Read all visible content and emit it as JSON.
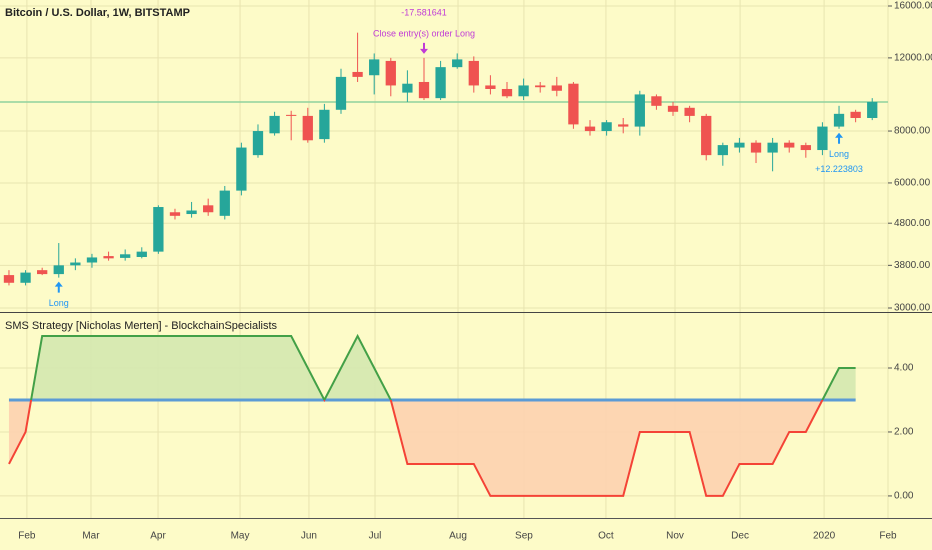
{
  "chart_data": [
    {
      "type": "candlestick",
      "title": "Bitcoin / U.S. Dollar, 1W, BITSTAMP",
      "x": [
        0,
        1,
        2,
        3,
        4,
        5,
        6,
        7,
        8,
        9,
        10,
        11,
        12,
        13,
        14,
        15,
        16,
        17,
        18,
        19,
        20,
        21,
        22,
        23,
        24,
        25,
        26,
        27,
        28,
        29,
        30,
        31,
        32,
        33,
        34,
        35,
        36,
        37,
        38,
        39,
        40,
        41,
        42,
        43,
        44,
        45,
        46,
        47,
        48,
        49,
        50,
        51,
        52
      ],
      "open": [
        3600,
        3450,
        3700,
        3620,
        3800,
        3860,
        4000,
        3960,
        3980,
        4100,
        5100,
        5050,
        5300,
        5000,
        5750,
        7000,
        7900,
        8750,
        8700,
        7650,
        9000,
        11100,
        10900,
        11800,
        9900,
        10500,
        9600,
        11400,
        11800,
        10300,
        10100,
        9700,
        10300,
        10300,
        10400,
        8200,
        8000,
        8300,
        8200,
        9700,
        9200,
        9100,
        8700,
        7000,
        7300,
        7500,
        7100,
        7500,
        7400,
        7200,
        8200,
        8900,
        8600
      ],
      "high": [
        3700,
        3700,
        3750,
        4300,
        3950,
        4050,
        4100,
        4150,
        4200,
        5300,
        5200,
        5400,
        5500,
        5900,
        7500,
        8300,
        8900,
        8950,
        9100,
        9300,
        11300,
        13800,
        12300,
        12000,
        11200,
        12000,
        11800,
        12300,
        12100,
        10900,
        10500,
        10700,
        10500,
        10800,
        10500,
        8500,
        8500,
        8600,
        10000,
        9800,
        9400,
        9200,
        8800,
        7500,
        7700,
        7600,
        7700,
        7600,
        7500,
        8400,
        9200,
        9000,
        9600
      ],
      "low": [
        3400,
        3400,
        3600,
        3550,
        3700,
        3750,
        3900,
        3900,
        3950,
        4050,
        4900,
        4950,
        5000,
        4900,
        5600,
        6900,
        7800,
        7600,
        7500,
        7500,
        8800,
        10500,
        9800,
        9700,
        9400,
        9500,
        9500,
        11300,
        9900,
        9800,
        9600,
        9500,
        9900,
        9700,
        8100,
        7800,
        7800,
        7900,
        7800,
        9000,
        8700,
        8400,
        6800,
        6600,
        7100,
        6700,
        6400,
        7100,
        6900,
        7000,
        8100,
        8400,
        8500
      ],
      "close": [
        3450,
        3650,
        3620,
        3800,
        3860,
        3970,
        3950,
        4040,
        4100,
        5250,
        5000,
        5150,
        5100,
        5750,
        7300,
        8000,
        8700,
        8700,
        7600,
        9000,
        10800,
        10800,
        11900,
        10300,
        10400,
        9600,
        11400,
        11900,
        10300,
        10100,
        9700,
        10300,
        10200,
        10000,
        8300,
        8000,
        8400,
        8200,
        9800,
        9200,
        8900,
        8700,
        7000,
        7400,
        7500,
        7100,
        7500,
        7300,
        7200,
        8200,
        8800,
        8600,
        9400
      ],
      "up_color": "#26a69a",
      "down_color": "#ef5350",
      "log": true,
      "xlim": [
        -0.54,
        52.95
      ],
      "ylim": [
        2934,
        16540
      ],
      "yticks": [
        {
          "value": 3000,
          "label": "3000.00"
        },
        {
          "value": 3800,
          "label": "3800.00"
        },
        {
          "value": 4800,
          "label": "4800.00"
        },
        {
          "value": 6000,
          "label": "6000.00"
        },
        {
          "value": 8000,
          "label": "8000.00"
        },
        {
          "value": 12000,
          "label": "12000.00"
        },
        {
          "value": 16000,
          "label": "16000.00"
        }
      ],
      "grid": true,
      "hline": 9400,
      "hline_color": "#8fd19e",
      "annotations": [
        {
          "x": 3,
          "side": "below",
          "color": "#2196f3",
          "texts": [
            "Long"
          ]
        },
        {
          "x": 25,
          "side": "above",
          "color": "#c03bd6",
          "texts": [
            "-17.581641",
            "Close entry(s) order Long"
          ]
        },
        {
          "x": 50,
          "side": "below",
          "color": "#2196f3",
          "texts": [
            "Long",
            "+12.223803"
          ]
        }
      ]
    },
    {
      "type": "line",
      "title": "SMS Strategy [Nicholas Merten] - BlockchainSpecialists",
      "x": [
        0,
        1,
        2,
        3,
        4,
        5,
        6,
        7,
        8,
        9,
        10,
        11,
        12,
        13,
        14,
        15,
        16,
        17,
        18,
        19,
        20,
        21,
        22,
        23,
        24,
        25,
        26,
        27,
        28,
        29,
        30,
        31,
        32,
        33,
        34,
        35,
        36,
        37,
        38,
        39,
        40,
        41,
        42,
        43,
        44,
        45,
        46,
        47,
        48,
        49,
        50,
        51,
        52
      ],
      "values": [
        1,
        2,
        5,
        5,
        5,
        5,
        5,
        5,
        5,
        5,
        5,
        5,
        5,
        5,
        5,
        5,
        5,
        5,
        4,
        3,
        4,
        5,
        4,
        3,
        1,
        1,
        1,
        1,
        1,
        0,
        0,
        0,
        0,
        0,
        0,
        0,
        0,
        0,
        2,
        2,
        2,
        2,
        0,
        0,
        1,
        1,
        1,
        2,
        2,
        3,
        4,
        4,
        null
      ],
      "baseline": 3,
      "baseline_color": "#5b9bd5",
      "above_color": "#43a047",
      "below_color": "#f44336",
      "above_fill": "#d4e8b0",
      "below_fill": "#fdd2b0",
      "xlim": [
        -0.54,
        52.95
      ],
      "ylim": [
        -0.69,
        5.72
      ],
      "yticks": [
        {
          "value": 0,
          "label": "0.00"
        },
        {
          "value": 2,
          "label": "2.00"
        },
        {
          "value": 4,
          "label": "4.00"
        }
      ],
      "xticks": [
        {
          "value": 1.08,
          "label": "Feb"
        },
        {
          "value": 4.94,
          "label": "Mar"
        },
        {
          "value": 8.98,
          "label": "Apr"
        },
        {
          "value": 13.92,
          "label": "May"
        },
        {
          "value": 18.07,
          "label": "Jun"
        },
        {
          "value": 22.05,
          "label": "Jul"
        },
        {
          "value": 27.05,
          "label": "Aug"
        },
        {
          "value": 31.02,
          "label": "Sep"
        },
        {
          "value": 35.96,
          "label": "Oct"
        },
        {
          "value": 40.12,
          "label": "Nov"
        },
        {
          "value": 44.04,
          "label": "Dec"
        },
        {
          "value": 49.1,
          "label": "2020"
        },
        {
          "value": 52.95,
          "label": "Feb"
        }
      ],
      "grid": true
    }
  ]
}
